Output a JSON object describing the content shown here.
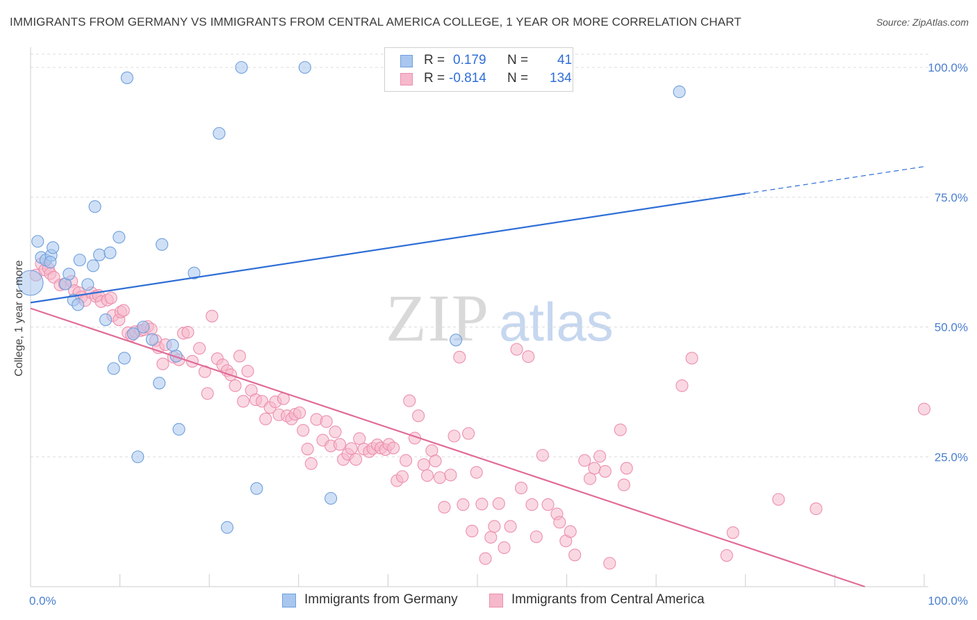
{
  "title": "IMMIGRANTS FROM GERMANY VS IMMIGRANTS FROM CENTRAL AMERICA COLLEGE, 1 YEAR OR MORE CORRELATION CHART",
  "source": "Source: ZipAtlas.com",
  "watermark": {
    "zip": "ZIP",
    "atlas": "atlas"
  },
  "colors": {
    "blue_fill": "#a8c6ee",
    "blue_stroke": "#6f9fdc",
    "blue_line": "#2e6ed6",
    "pink_fill": "#f6b8cb",
    "pink_stroke": "#ec8fad",
    "pink_line": "#e06b97",
    "tick_text": "#4a7fcf",
    "grid": "#dcdcdc"
  },
  "legend": {
    "rows": [
      {
        "r_label": "R =",
        "r_value": "0.179",
        "n_label": "N =",
        "n_value": "41"
      },
      {
        "r_label": "R =",
        "r_value": "-0.814",
        "n_label": "N =",
        "n_value": "134"
      }
    ]
  },
  "bottom_legend": [
    "Immigrants from Germany",
    "Immigrants from Central America"
  ],
  "chart_data": {
    "type": "scatter",
    "title": "IMMIGRANTS FROM GERMANY VS IMMIGRANTS FROM CENTRAL AMERICA COLLEGE, 1 YEAR OR MORE CORRELATION CHART",
    "xlabel": "",
    "ylabel": "College, 1 year or more",
    "xlim": [
      0,
      100
    ],
    "ylim": [
      0,
      102
    ],
    "x_tick_labels": [
      "0.0%",
      "100.0%"
    ],
    "y_ticks": [
      25,
      50,
      75,
      100
    ],
    "y_tick_labels": [
      "25.0%",
      "50.0%",
      "75.0%",
      "100.0%"
    ],
    "grid": "horizontal dashed",
    "legend_position": "top-center",
    "series": [
      {
        "name": "Immigrants from Germany",
        "color": "#a8c6ee",
        "r": 0.179,
        "n": 41,
        "trend": {
          "x": [
            0,
            80
          ],
          "y": [
            54.7,
            75.7
          ],
          "dashed_extension_to_x": 100,
          "dashed_extension_y": 80.9
        },
        "points": [
          [
            0.0,
            58.5
          ],
          [
            0.8,
            66.5
          ],
          [
            1.2,
            63.4
          ],
          [
            1.7,
            62.9
          ],
          [
            2.3,
            63.8
          ],
          [
            2.5,
            65.3
          ],
          [
            2.2,
            62.5
          ],
          [
            3.9,
            58.3
          ],
          [
            4.3,
            60.2
          ],
          [
            4.8,
            55.2
          ],
          [
            5.3,
            54.3
          ],
          [
            5.5,
            62.9
          ],
          [
            6.4,
            58.2
          ],
          [
            7.0,
            61.8
          ],
          [
            7.2,
            73.2
          ],
          [
            7.7,
            63.9
          ],
          [
            8.4,
            51.4
          ],
          [
            8.9,
            64.3
          ],
          [
            9.3,
            42.0
          ],
          [
            9.9,
            67.3
          ],
          [
            10.5,
            44.0
          ],
          [
            10.8,
            98.0
          ],
          [
            11.5,
            48.7
          ],
          [
            12.0,
            25.0
          ],
          [
            12.6,
            50.0
          ],
          [
            13.6,
            47.6
          ],
          [
            14.4,
            39.2
          ],
          [
            14.7,
            65.9
          ],
          [
            15.9,
            46.5
          ],
          [
            16.3,
            44.4
          ],
          [
            16.6,
            30.3
          ],
          [
            18.3,
            60.4
          ],
          [
            21.1,
            87.3
          ],
          [
            22.0,
            11.4
          ],
          [
            23.6,
            100.0
          ],
          [
            25.3,
            18.9
          ],
          [
            30.7,
            100.0
          ],
          [
            33.6,
            17.0
          ],
          [
            47.6,
            47.5
          ],
          [
            49.9,
            100.0
          ],
          [
            72.6,
            95.3
          ]
        ]
      },
      {
        "name": "Immigrants from Central America",
        "color": "#f6b8cb",
        "r": -0.814,
        "n": 134,
        "trend": {
          "x": [
            0,
            100
          ],
          "y": [
            53.6,
            -4.0
          ]
        },
        "points": [
          [
            0.6,
            60.0
          ],
          [
            1.2,
            62.2
          ],
          [
            1.6,
            61.0
          ],
          [
            2.0,
            61.3
          ],
          [
            2.2,
            60.3
          ],
          [
            2.6,
            59.6
          ],
          [
            3.3,
            58.1
          ],
          [
            3.8,
            58.3
          ],
          [
            4.6,
            58.8
          ],
          [
            4.9,
            57.0
          ],
          [
            5.4,
            56.6
          ],
          [
            5.7,
            55.8
          ],
          [
            6.1,
            55.1
          ],
          [
            6.8,
            56.6
          ],
          [
            7.3,
            55.9
          ],
          [
            7.6,
            56.1
          ],
          [
            7.9,
            54.9
          ],
          [
            8.6,
            55.2
          ],
          [
            9.0,
            55.6
          ],
          [
            9.2,
            52.2
          ],
          [
            9.9,
            51.4
          ],
          [
            10.1,
            52.9
          ],
          [
            10.4,
            53.2
          ],
          [
            10.9,
            48.9
          ],
          [
            11.3,
            48.4
          ],
          [
            11.7,
            49.1
          ],
          [
            12.3,
            49.3
          ],
          [
            12.7,
            49.5
          ],
          [
            13.1,
            50.1
          ],
          [
            13.5,
            49.6
          ],
          [
            14.0,
            47.4
          ],
          [
            14.3,
            46.0
          ],
          [
            14.8,
            42.9
          ],
          [
            15.1,
            46.6
          ],
          [
            16.0,
            44.2
          ],
          [
            16.6,
            43.7
          ],
          [
            17.1,
            48.8
          ],
          [
            17.6,
            49.0
          ],
          [
            18.1,
            43.4
          ],
          [
            18.9,
            45.9
          ],
          [
            19.5,
            41.4
          ],
          [
            19.8,
            37.2
          ],
          [
            20.3,
            52.1
          ],
          [
            20.9,
            43.9
          ],
          [
            21.5,
            42.7
          ],
          [
            22.0,
            41.6
          ],
          [
            22.4,
            40.8
          ],
          [
            22.9,
            38.7
          ],
          [
            23.4,
            44.4
          ],
          [
            23.8,
            35.7
          ],
          [
            24.3,
            41.5
          ],
          [
            24.7,
            37.8
          ],
          [
            25.2,
            36.0
          ],
          [
            25.9,
            35.7
          ],
          [
            26.3,
            32.3
          ],
          [
            26.8,
            34.5
          ],
          [
            27.4,
            35.6
          ],
          [
            27.8,
            33.1
          ],
          [
            28.3,
            36.2
          ],
          [
            28.7,
            32.9
          ],
          [
            29.2,
            32.3
          ],
          [
            29.6,
            33.2
          ],
          [
            30.1,
            33.5
          ],
          [
            30.5,
            30.1
          ],
          [
            31.0,
            26.5
          ],
          [
            31.4,
            23.7
          ],
          [
            32.0,
            32.2
          ],
          [
            32.7,
            28.2
          ],
          [
            33.1,
            31.8
          ],
          [
            33.6,
            27.1
          ],
          [
            34.1,
            29.8
          ],
          [
            34.6,
            27.4
          ],
          [
            35.0,
            24.5
          ],
          [
            35.5,
            25.5
          ],
          [
            35.9,
            26.6
          ],
          [
            36.4,
            24.5
          ],
          [
            36.8,
            28.5
          ],
          [
            37.3,
            26.5
          ],
          [
            37.9,
            26.0
          ],
          [
            38.3,
            26.6
          ],
          [
            38.8,
            27.3
          ],
          [
            39.2,
            26.7
          ],
          [
            39.7,
            26.4
          ],
          [
            40.1,
            27.4
          ],
          [
            40.6,
            26.7
          ],
          [
            41.0,
            20.4
          ],
          [
            41.6,
            21.2
          ],
          [
            42.0,
            24.3
          ],
          [
            42.4,
            35.8
          ],
          [
            43.0,
            28.6
          ],
          [
            43.4,
            32.9
          ],
          [
            44.0,
            23.5
          ],
          [
            44.4,
            21.4
          ],
          [
            44.9,
            26.2
          ],
          [
            45.3,
            24.2
          ],
          [
            45.8,
            21.0
          ],
          [
            46.3,
            15.3
          ],
          [
            47.0,
            21.5
          ],
          [
            47.4,
            29.0
          ],
          [
            48.0,
            44.2
          ],
          [
            48.4,
            15.8
          ],
          [
            49.0,
            29.5
          ],
          [
            49.4,
            10.7
          ],
          [
            49.9,
            22.0
          ],
          [
            50.5,
            15.9
          ],
          [
            50.9,
            5.4
          ],
          [
            51.5,
            9.5
          ],
          [
            51.9,
            11.6
          ],
          [
            52.4,
            16.0
          ],
          [
            53.0,
            7.5
          ],
          [
            53.7,
            11.6
          ],
          [
            54.4,
            45.7
          ],
          [
            54.9,
            19.0
          ],
          [
            55.7,
            44.3
          ],
          [
            56.1,
            15.8
          ],
          [
            56.6,
            9.6
          ],
          [
            57.3,
            25.3
          ],
          [
            57.9,
            15.8
          ],
          [
            58.9,
            14.0
          ],
          [
            59.2,
            12.4
          ],
          [
            59.9,
            8.8
          ],
          [
            60.4,
            10.6
          ],
          [
            60.9,
            6.1
          ],
          [
            62.0,
            24.3
          ],
          [
            62.6,
            20.8
          ],
          [
            63.1,
            22.8
          ],
          [
            63.7,
            25.1
          ],
          [
            64.3,
            22.2
          ],
          [
            64.8,
            4.5
          ],
          [
            66.0,
            30.2
          ],
          [
            66.4,
            19.6
          ],
          [
            66.7,
            22.8
          ],
          [
            72.9,
            38.7
          ],
          [
            74.0,
            44.0
          ],
          [
            77.9,
            6.0
          ],
          [
            78.6,
            10.4
          ],
          [
            83.7,
            16.8
          ],
          [
            87.9,
            15.0
          ],
          [
            100.0,
            34.2
          ]
        ]
      }
    ]
  }
}
